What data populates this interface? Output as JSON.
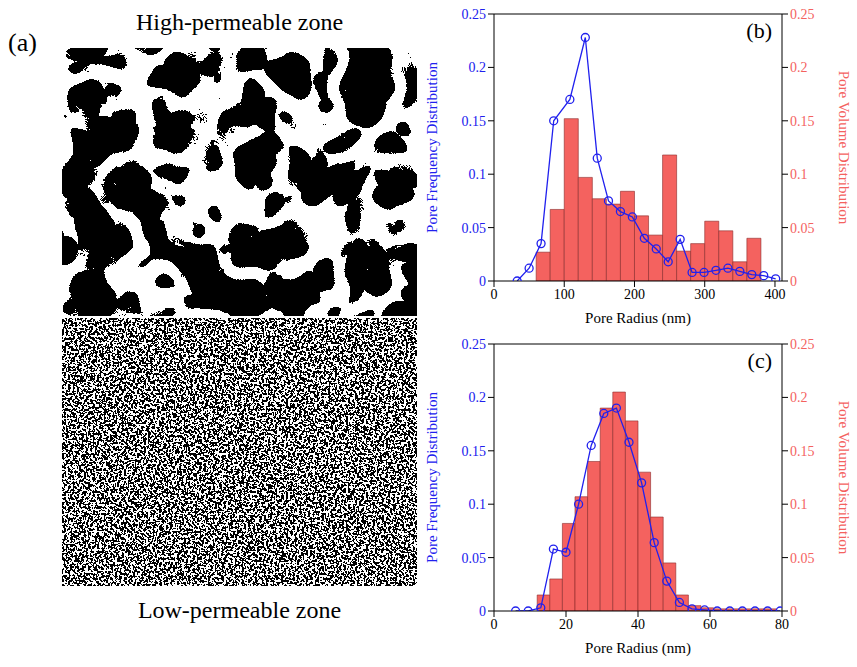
{
  "image_panel": {
    "label": "(a)",
    "top_title": "High-permeable zone",
    "bottom_title": "Low-permeable zone"
  },
  "chart_data": [
    {
      "type": "combo",
      "annotation": "(b)",
      "xlabel": "Pore Radius (nm)",
      "ylabel": "Pore Frequency Distribution",
      "y2label": "Pore Volume Distribution",
      "xlim": [
        0,
        410
      ],
      "xticks": [
        0,
        100,
        200,
        300,
        400
      ],
      "ylim": [
        0,
        0.25
      ],
      "yticks": [
        0,
        0.05,
        0.1,
        0.15,
        0.2,
        0.25
      ],
      "y2lim": [
        0,
        0.25
      ],
      "y2ticks": [
        0,
        0.05,
        0.1,
        0.15,
        0.2,
        0.25
      ],
      "series": [
        {
          "type": "histogram",
          "axis": "y2",
          "color": "#f4625f",
          "bins": [
            60,
            80,
            100,
            120,
            140,
            160,
            180,
            200,
            220,
            240,
            260,
            280,
            300,
            320,
            340,
            360,
            380
          ],
          "values": [
            0.027,
            0.067,
            0.152,
            0.097,
            0.077,
            0.072,
            0.084,
            0.061,
            0.043,
            0.118,
            0.028,
            0.035,
            0.056,
            0.047,
            0.018,
            0.04
          ]
        },
        {
          "type": "line",
          "marker": "circle",
          "color": "#2020ee",
          "x": [
            33,
            50,
            67,
            85,
            108,
            130,
            147,
            163,
            180,
            197,
            214,
            231,
            248,
            265,
            282,
            299,
            316,
            333,
            350,
            367,
            384,
            401
          ],
          "values": [
            0,
            0.012,
            0.035,
            0.15,
            0.17,
            0.228,
            0.115,
            0.075,
            0.065,
            0.06,
            0.04,
            0.03,
            0.018,
            0.039,
            0.008,
            0.008,
            0.01,
            0.012,
            0.009,
            0.006,
            0.005,
            0.002
          ]
        }
      ]
    },
    {
      "type": "combo",
      "annotation": "(c)",
      "xlabel": "Pore Radius (nm)",
      "ylabel": "Pore Frequency Distribution",
      "y2label": "Pore Volume Distribution",
      "xlim": [
        0,
        80
      ],
      "xticks": [
        0,
        20,
        40,
        60,
        80
      ],
      "ylim": [
        0,
        0.25
      ],
      "yticks": [
        0,
        0.05,
        0.1,
        0.15,
        0.2,
        0.25
      ],
      "y2lim": [
        0,
        0.25
      ],
      "y2ticks": [
        0,
        0.05,
        0.1,
        0.15,
        0.2,
        0.25
      ],
      "series": [
        {
          "type": "histogram",
          "axis": "y2",
          "color": "#f4625f",
          "bins": [
            12,
            15.5,
            19,
            22.5,
            26,
            29.5,
            33,
            36.5,
            40,
            43.5,
            47,
            50.5,
            54,
            57.5,
            61,
            64.5,
            68,
            71.5,
            75,
            78.5
          ],
          "values": [
            0.015,
            0.03,
            0.082,
            0.107,
            0.14,
            0.19,
            0.205,
            0.178,
            0.13,
            0.088,
            0.045,
            0.015,
            0.005,
            0.003,
            0.002,
            0.002,
            0.002,
            0.002,
            0.002
          ]
        },
        {
          "type": "line",
          "marker": "circle",
          "color": "#2020ee",
          "x": [
            6,
            9.5,
            13,
            16.5,
            20,
            23.5,
            27,
            30.5,
            34,
            37.5,
            41,
            44.5,
            48,
            51.5,
            55,
            58.5,
            62,
            65.5,
            69,
            72.5,
            76,
            79.5
          ],
          "values": [
            0,
            0,
            0.003,
            0.058,
            0.055,
            0.1,
            0.155,
            0.185,
            0.19,
            0.158,
            0.12,
            0.064,
            0.028,
            0.008,
            0.002,
            0.001,
            0,
            0,
            0,
            0,
            0,
            0
          ]
        }
      ]
    }
  ]
}
